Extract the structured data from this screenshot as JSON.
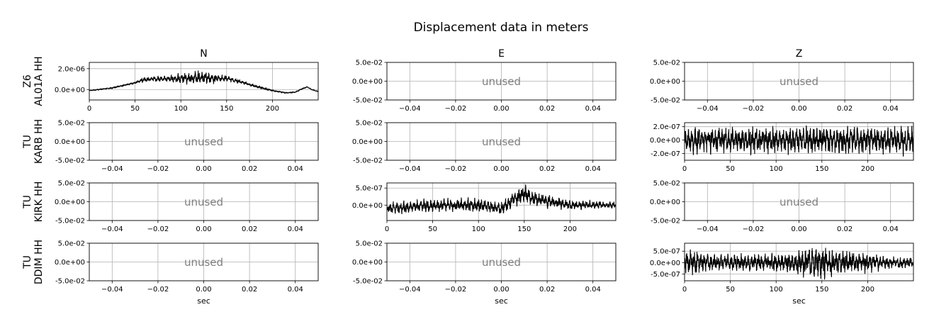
{
  "figure": {
    "title": "Displacement data in meters",
    "columns": [
      "N",
      "E",
      "Z"
    ],
    "rows": [
      {
        "network": "Z6",
        "station": "AL01A HH"
      },
      {
        "network": "TU",
        "station": "KARB HH"
      },
      {
        "network": "TU",
        "station": "KIRK HH"
      },
      {
        "network": "TU",
        "station": "DDIM HH"
      }
    ],
    "xlabel": "sec",
    "unused_label": "unused"
  },
  "chart_data": [
    {
      "type": "line",
      "row": 0,
      "col": 0,
      "channel": "N",
      "title": "N",
      "xlim": [
        0,
        250
      ],
      "ylim": [
        -1e-06,
        2.6e-06
      ],
      "xticks": [
        0,
        50,
        100,
        150,
        200
      ],
      "xticklabels": [
        "0",
        "50",
        "100",
        "150",
        "200"
      ],
      "yticks": [
        0,
        2e-06
      ],
      "yticklabels": [
        "0.0e+00",
        "2.0e-06"
      ],
      "grid": true,
      "envelope": {
        "x": [
          0,
          25,
          50,
          60,
          70,
          90,
          110,
          120,
          130,
          150,
          165,
          180,
          200,
          215,
          225,
          232,
          238,
          243,
          250
        ],
        "y": [
          -1e-07,
          1.5e-07,
          6.5e-07,
          9.5e-07,
          1e-06,
          1.05e-06,
          1.1e-06,
          1.2e-06,
          1.1e-06,
          1.05e-06,
          7.5e-07,
          3.5e-07,
          -1e-07,
          -3.2e-07,
          -2.5e-07,
          5e-08,
          2.5e-07,
          0,
          -2e-07
        ]
      },
      "noise": {
        "x": [
          0,
          50,
          58,
          75,
          95,
          110,
          120,
          130,
          150,
          165,
          200,
          250
        ],
        "a": [
          3e-08,
          6e-08,
          2e-07,
          2.5e-07,
          3.5e-07,
          5e-07,
          6e-07,
          5e-07,
          2.5e-07,
          1.3e-07,
          5e-08,
          3e-08
        ]
      }
    },
    {
      "type": "line",
      "row": 1,
      "col": 2,
      "channel": "Z",
      "xlim": [
        0,
        250
      ],
      "ylim": [
        -3e-07,
        2.6e-07
      ],
      "xticks": [
        0,
        50,
        100,
        150,
        200
      ],
      "xticklabels": [
        "0",
        "50",
        "100",
        "150",
        "200"
      ],
      "yticks": [
        -2e-07,
        0,
        2e-07
      ],
      "yticklabels": [
        "-2.0e-07",
        "0.0e+00",
        "2.0e-07"
      ],
      "grid": true,
      "envelope": {
        "x": [
          0,
          250
        ],
        "y": [
          0,
          0
        ]
      },
      "noise": {
        "x": [
          0,
          250
        ],
        "a": [
          1.8e-07,
          1.8e-07
        ]
      }
    },
    {
      "type": "line",
      "row": 2,
      "col": 1,
      "channel": "E",
      "xlim": [
        0,
        250
      ],
      "ylim": [
        -4.5e-07,
        6.5e-07
      ],
      "xticks": [
        0,
        50,
        100,
        150,
        200
      ],
      "xticklabels": [
        "0",
        "50",
        "100",
        "150",
        "200"
      ],
      "yticks": [
        0,
        5e-07
      ],
      "yticklabels": [
        "0.0e+00",
        "5.0e-07"
      ],
      "grid": true,
      "envelope": {
        "x": [
          0,
          60,
          100,
          125,
          140,
          150,
          160,
          200,
          250
        ],
        "y": [
          -1e-07,
          0,
          0,
          -1e-07,
          2e-07,
          3.5e-07,
          2e-07,
          0,
          0
        ]
      },
      "noise": {
        "x": [
          0,
          100,
          140,
          150,
          160,
          200,
          250
        ],
        "a": [
          1.5e-07,
          1.7e-07,
          2e-07,
          2.5e-07,
          2e-07,
          1.2e-07,
          8e-08
        ]
      }
    },
    {
      "type": "line",
      "row": 3,
      "col": 2,
      "channel": "Z",
      "xlim": [
        0,
        250
      ],
      "ylim": [
        -8e-07,
        8.5e-07
      ],
      "xticks": [
        0,
        50,
        100,
        150,
        200
      ],
      "xticklabels": [
        "0",
        "50",
        "100",
        "150",
        "200"
      ],
      "yticks": [
        -5e-07,
        0,
        5e-07
      ],
      "yticklabels": [
        "-5.0e-07",
        "0.0e+00",
        "5.0e-07"
      ],
      "grid": true,
      "envelope": {
        "x": [
          0,
          250
        ],
        "y": [
          0,
          0
        ]
      },
      "noise": {
        "x": [
          0,
          10,
          30,
          60,
          100,
          140,
          150,
          160,
          200,
          220,
          250
        ],
        "a": [
          5e-07,
          5e-07,
          3e-07,
          3.5e-07,
          3.5e-07,
          6e-07,
          7e-07,
          5e-07,
          4e-07,
          2.5e-07,
          2e-07
        ]
      }
    }
  ],
  "unused_axes": {
    "xlim": [
      -0.05,
      0.05
    ],
    "ylim": [
      -0.05,
      0.05
    ],
    "xticks": [
      -0.04,
      -0.02,
      0,
      0.02,
      0.04
    ],
    "xticklabels": [
      "−0.04",
      "−0.02",
      "0.00",
      "0.02",
      "0.04"
    ],
    "yticks": [
      -0.05,
      0,
      0.05
    ],
    "yticklabels": [
      "-5.0e-02",
      "0.0e+00",
      "5.0e-02"
    ],
    "cells": [
      {
        "row": 0,
        "col": 1
      },
      {
        "row": 0,
        "col": 2
      },
      {
        "row": 1,
        "col": 0
      },
      {
        "row": 1,
        "col": 1
      },
      {
        "row": 2,
        "col": 0
      },
      {
        "row": 2,
        "col": 2
      },
      {
        "row": 3,
        "col": 0
      },
      {
        "row": 3,
        "col": 1
      }
    ]
  },
  "colors": {
    "trace": "#000000",
    "grid": "#b0b0b0",
    "unused_text": "#808080",
    "axes": "#000000"
  }
}
